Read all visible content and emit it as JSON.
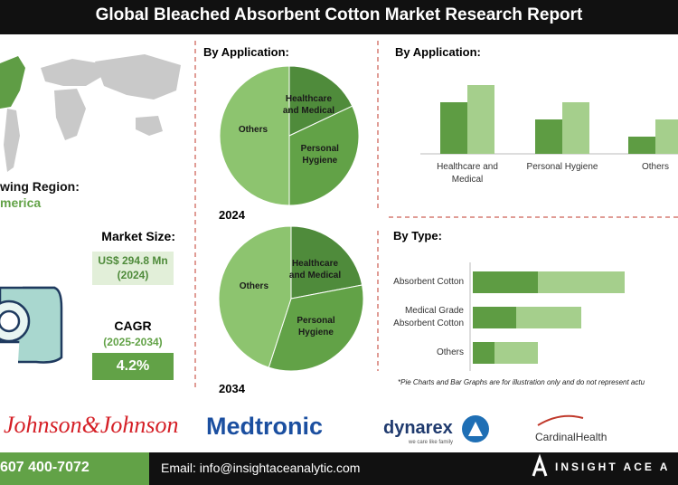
{
  "header": {
    "title": "Global Bleached Absorbent Cotton Market Research Report"
  },
  "region": {
    "label": "wing Region:",
    "value": "merica"
  },
  "market_size": {
    "label": "Market Size:",
    "value": "US$ 294.8 Mn (2024)"
  },
  "cagr": {
    "label": "CAGR",
    "period": "(2025-2034)",
    "value": "4.2%"
  },
  "pies": {
    "type": "pie",
    "title": "By Application:",
    "labels": [
      "Healthcare and Medical",
      "Personal Hygiene",
      "Others"
    ],
    "colors": [
      "#4f8b3b",
      "#62a247",
      "#8dc46f"
    ],
    "charts": [
      {
        "year": "2024",
        "values": [
          18,
          32,
          50
        ]
      },
      {
        "year": "2034",
        "values": [
          22,
          33,
          45
        ]
      }
    ]
  },
  "application_bars": {
    "type": "bar",
    "title": "By Application:",
    "categories": [
      "Healthcare and Medical",
      "Personal Hygiene",
      "Others"
    ],
    "series": [
      {
        "color": "#5e9c43",
        "values": [
          3,
          2,
          1
        ]
      },
      {
        "color": "#a5cf8c",
        "values": [
          4,
          3,
          2
        ]
      }
    ]
  },
  "type_bars": {
    "type": "stacked-bar-horizontal",
    "title": "By Type:",
    "categories": [
      "Absorbent Cotton",
      "Medical Grade Absorbent Cotton",
      "Others"
    ],
    "series": [
      {
        "color": "#5e9c43",
        "values": [
          3,
          2,
          1
        ]
      },
      {
        "color": "#a5cf8c",
        "values": [
          4,
          3,
          2
        ]
      }
    ]
  },
  "note": "*Pie Charts and Bar Graphs are for illustration only and do not represent actu",
  "logos": {
    "jnj": "Johnson&Johnson",
    "medtronic": "Medtronic",
    "dynarex": "dynarex",
    "dynarex_tagline": "we care like family",
    "cardinal": "CardinalHealth"
  },
  "footer": {
    "phone": "607 400-7072",
    "email": "Email: info@insightaceanalytic.com",
    "brand": "INSIGHT ACE A"
  }
}
